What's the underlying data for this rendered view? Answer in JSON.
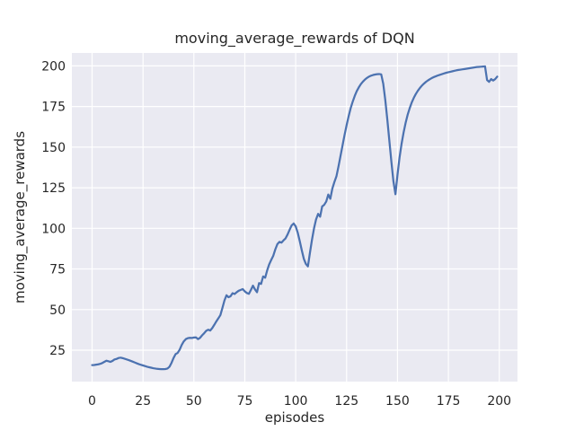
{
  "figure": {
    "title": "moving_average_rewards of DQN",
    "xlabel": "episodes",
    "ylabel": "moving_average_rewards"
  },
  "colors": {
    "figure_bg": "#FFFFFF",
    "plot_bg": "#EAEAF2",
    "grid": "#FFFFFF",
    "line": "#4C72B0",
    "text": "#262626"
  },
  "chart_data": {
    "type": "line",
    "title": "moving_average_rewards of DQN",
    "xlabel": "episodes",
    "ylabel": "moving_average_rewards",
    "grid": true,
    "legend": "none",
    "x_ticks": [
      0,
      25,
      50,
      75,
      100,
      125,
      150,
      175,
      200
    ],
    "y_ticks": [
      25,
      50,
      75,
      100,
      125,
      150,
      175,
      200
    ],
    "xlim": [
      -9.95,
      208.95
    ],
    "ylim": [
      5.65,
      207.96
    ],
    "series": [
      {
        "name": "moving_average_rewards",
        "color": "#4C72B0",
        "x_start": 0,
        "x_step": 1,
        "values": [
          15.8,
          15.9,
          16.1,
          16.3,
          16.6,
          17.1,
          17.8,
          18.5,
          18.2,
          17.8,
          18.4,
          19.3,
          19.6,
          20.2,
          20.4,
          20.1,
          19.7,
          19.3,
          18.9,
          18.4,
          17.9,
          17.4,
          16.9,
          16.4,
          16.0,
          15.6,
          15.2,
          14.8,
          14.5,
          14.2,
          13.9,
          13.7,
          13.5,
          13.4,
          13.3,
          13.3,
          13.4,
          13.7,
          14.8,
          17.2,
          20.2,
          22.6,
          23.3,
          25.3,
          28.2,
          30.4,
          31.8,
          32.4,
          32.6,
          32.5,
          32.8,
          32.9,
          31.8,
          32.6,
          34.1,
          35.4,
          36.9,
          37.6,
          37.1,
          38.6,
          40.6,
          42.7,
          44.6,
          46.6,
          51.0,
          55.6,
          58.8,
          57.6,
          58.2,
          60.1,
          59.6,
          60.7,
          61.6,
          62.1,
          62.6,
          61.2,
          60.2,
          59.7,
          62.1,
          64.7,
          62.4,
          60.7,
          66.3,
          65.8,
          70.4,
          69.6,
          74.2,
          77.9,
          80.6,
          83.2,
          87.1,
          90.3,
          91.7,
          91.2,
          92.6,
          93.8,
          96.2,
          99.1,
          101.8,
          103.0,
          101.2,
          97.3,
          92.1,
          86.4,
          81.2,
          78.1,
          76.6,
          85.0,
          93.0,
          100.0,
          105.5,
          108.9,
          107.2,
          113.5,
          114.5,
          116.5,
          120.8,
          118.2,
          124.5,
          128.5,
          132.0,
          138.0,
          144.5,
          151.0,
          157.5,
          163.5,
          169.0,
          174.0,
          178.0,
          181.5,
          184.5,
          186.8,
          188.8,
          190.3,
          191.6,
          192.6,
          193.4,
          194.0,
          194.4,
          194.7,
          194.9,
          195.0,
          194.8,
          189.0,
          179.0,
          167.0,
          154.0,
          141.0,
          129.0,
          121.0,
          133.0,
          143.5,
          152.0,
          159.0,
          165.0,
          170.0,
          174.0,
          177.5,
          180.3,
          182.7,
          184.7,
          186.4,
          187.9,
          189.1,
          190.2,
          191.1,
          191.9,
          192.6,
          193.2,
          193.7,
          194.2,
          194.6,
          195.0,
          195.4,
          195.8,
          196.1,
          196.4,
          196.7,
          197.0,
          197.3,
          197.5,
          197.7,
          197.9,
          198.1,
          198.3,
          198.5,
          198.7,
          198.9,
          199.1,
          199.3,
          199.4,
          199.5,
          199.6,
          199.7,
          191.3,
          190.2,
          191.9,
          191.0,
          191.9,
          193.4
        ]
      }
    ]
  }
}
